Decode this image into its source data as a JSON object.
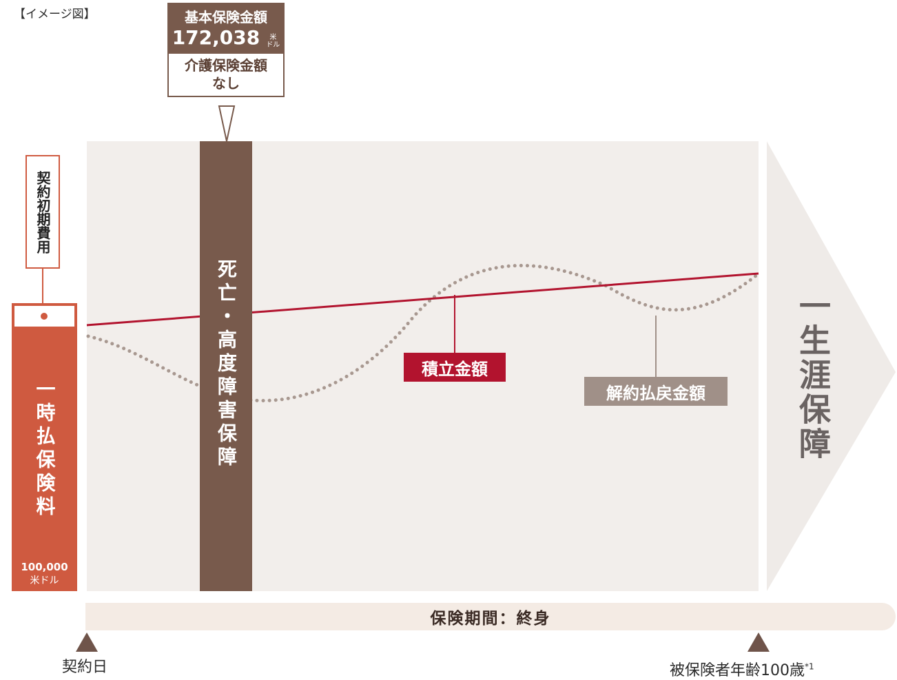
{
  "caption": "【イメージ図】",
  "callout": {
    "title": "基本保険金額",
    "amount": "172,038",
    "unit_top": "米",
    "unit_bottom": "ドル",
    "sub_title": "介護保険金額",
    "sub_value": "なし"
  },
  "initial_cost_label": "契約初期費用",
  "premium": {
    "label": "一時払保険料",
    "amount": "100,000",
    "unit": "米ドル"
  },
  "death_coverage_label": "死亡・高度障害保障",
  "accumulation_label": "積立金額",
  "surrender_label": "解約払戻金額",
  "lifetime_label": "一生涯保障",
  "period_label": "保険期間：終身",
  "start_label": "契約日",
  "end_label": "被保険者年齢100歳",
  "end_note": "*1",
  "colors": {
    "premium": "#cf5a40",
    "death_bar": "#785a4c",
    "accumulation": "#b2132e",
    "surrender": "#a09088",
    "panel": "#f2eeeb",
    "arrow": "#efebe8"
  }
}
